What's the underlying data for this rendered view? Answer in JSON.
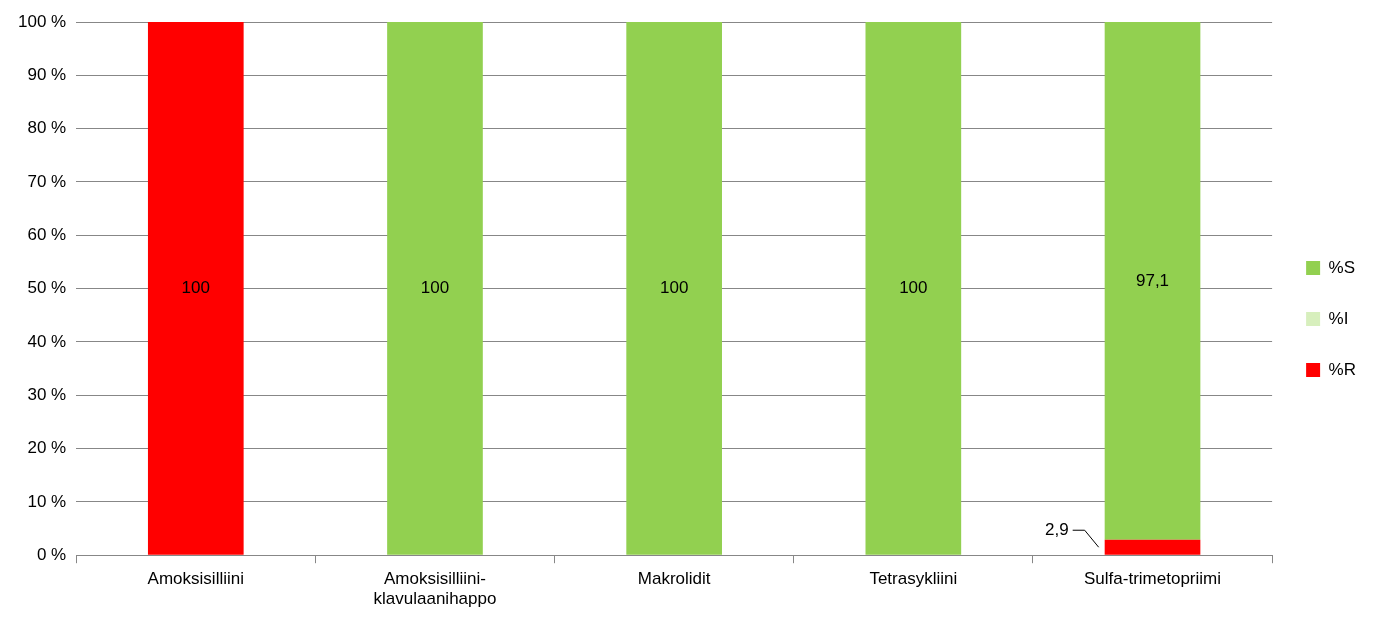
{
  "chart_data": {
    "type": "bar",
    "stacked": true,
    "categories": [
      "Amoksisilliini",
      "Amoksisilliini-klavulaanihappo",
      "Makrolidit",
      "Tetrasykliini",
      "Sulfa-trimetopriimi"
    ],
    "series": [
      {
        "name": "%R",
        "color": "#ff0000",
        "values": [
          100,
          0,
          0,
          0,
          2.9
        ],
        "value_labels": [
          "100",
          null,
          null,
          null,
          "2,9"
        ]
      },
      {
        "name": "%I",
        "color": "#d7efbd",
        "values": [
          0,
          0,
          0,
          0,
          0
        ],
        "value_labels": [
          null,
          null,
          null,
          null,
          null
        ]
      },
      {
        "name": "%S",
        "color": "#92d050",
        "values": [
          0,
          100,
          100,
          100,
          97.1
        ],
        "value_labels": [
          null,
          "100",
          "100",
          "100",
          "97,1"
        ]
      }
    ],
    "ylim": [
      0,
      100
    ],
    "yticks": [
      {
        "value": 0,
        "label": "0 %"
      },
      {
        "value": 10,
        "label": "10 %"
      },
      {
        "value": 20,
        "label": "20 %"
      },
      {
        "value": 30,
        "label": "30 %"
      },
      {
        "value": 40,
        "label": "40 %"
      },
      {
        "value": 50,
        "label": "50 %"
      },
      {
        "value": 60,
        "label": "60 %"
      },
      {
        "value": 70,
        "label": "70 %"
      },
      {
        "value": 80,
        "label": "80 %"
      },
      {
        "value": 90,
        "label": "90 %"
      },
      {
        "value": 100,
        "label": "100 %"
      }
    ],
    "grid": "y",
    "legend": "right"
  }
}
